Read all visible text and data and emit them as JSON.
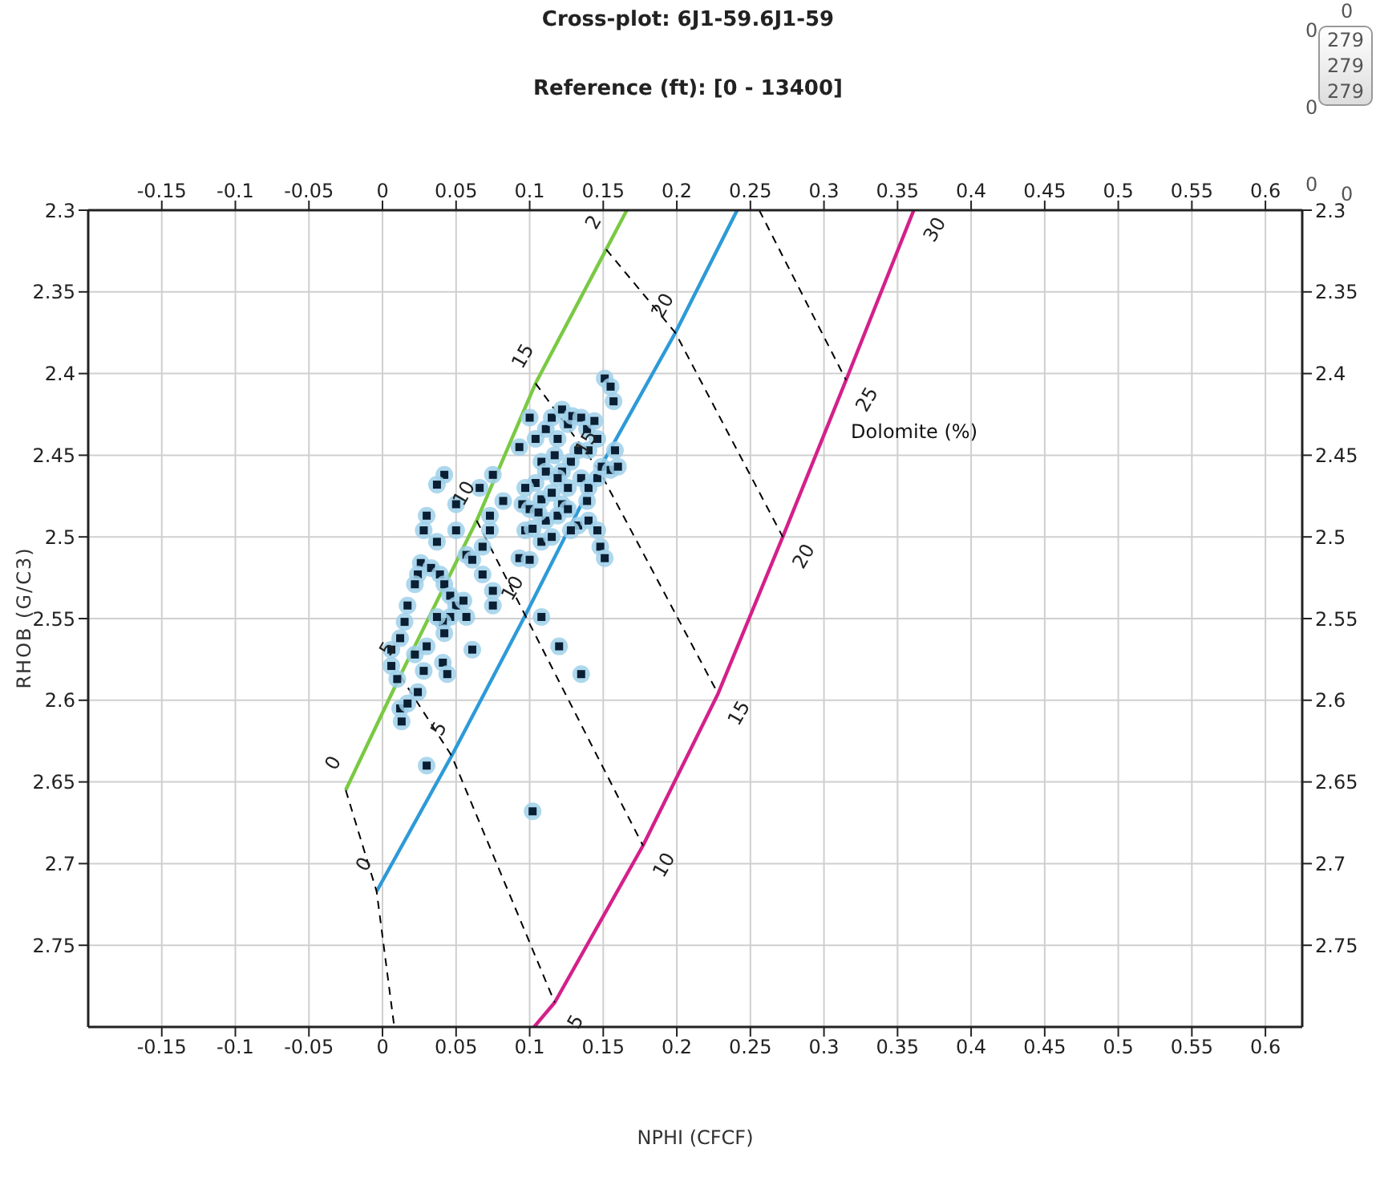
{
  "chart_data": {
    "type": "scatter",
    "title": "Cross-plot: 6J1-59.6J1-59",
    "subtitle": "Reference (ft): [0 - 13400]",
    "xlabel": "NPHI (CFCF)",
    "ylabel": "RHOB (G/C3)",
    "xlim": [
      -0.2,
      0.625
    ],
    "xticks": [
      -0.15,
      -0.1,
      -0.05,
      0,
      0.05,
      0.1,
      0.15,
      0.2,
      0.25,
      0.3,
      0.35,
      0.4,
      0.45,
      0.5,
      0.55,
      0.6
    ],
    "x2lim": [
      -0.2,
      0.625
    ],
    "x2ticks": [
      -0.15,
      -0.1,
      -0.05,
      0,
      0.05,
      0.1,
      0.15,
      0.2,
      0.25,
      0.3,
      0.35,
      0.4,
      0.45,
      0.5,
      0.55,
      0.6
    ],
    "ylim": [
      2.8,
      2.3
    ],
    "yticks": [
      2.3,
      2.35,
      2.4,
      2.45,
      2.5,
      2.55,
      2.6,
      2.65,
      2.7,
      2.75
    ],
    "y2lim": [
      2.8,
      2.3
    ],
    "y2ticks": [
      2.3,
      2.35,
      2.4,
      2.45,
      2.5,
      2.55,
      2.6,
      2.65,
      2.7,
      2.75
    ],
    "grid": true,
    "series": [
      {
        "marker": "square",
        "color": "#0a1f33",
        "x": [
          0.042,
          0.037,
          0.03,
          0.028,
          0.037,
          0.026,
          0.024,
          0.022,
          0.033,
          0.039,
          0.042,
          0.046,
          0.05,
          0.055,
          0.057,
          0.046,
          0.041,
          0.042,
          0.037,
          0.017,
          0.015,
          0.012,
          0.006,
          0.006,
          0.01,
          0.012,
          0.013,
          0.017,
          0.022,
          0.024,
          0.028,
          0.03,
          0.041,
          0.044,
          0.061,
          0.03,
          0.102,
          0.05,
          0.05,
          0.057,
          0.068,
          0.061,
          0.068,
          0.075,
          0.075,
          0.073,
          0.075,
          0.066,
          0.082,
          0.073,
          0.093,
          0.1,
          0.104,
          0.108,
          0.111,
          0.115,
          0.119,
          0.122,
          0.126,
          0.129,
          0.135,
          0.139,
          0.144,
          0.146,
          0.14,
          0.133,
          0.128,
          0.122,
          0.117,
          0.111,
          0.104,
          0.097,
          0.095,
          0.1,
          0.108,
          0.115,
          0.122,
          0.126,
          0.135,
          0.14,
          0.146,
          0.149,
          0.155,
          0.16,
          0.158,
          0.157,
          0.151,
          0.155,
          0.097,
          0.102,
          0.108,
          0.111,
          0.119,
          0.126,
          0.133,
          0.14,
          0.146,
          0.148,
          0.151,
          0.108,
          0.12,
          0.135,
          0.093,
          0.1,
          0.115,
          0.128,
          0.139,
          0.119,
          0.106
        ],
        "values": [
          2.462,
          2.468,
          2.487,
          2.496,
          2.503,
          2.516,
          2.523,
          2.529,
          2.519,
          2.523,
          2.529,
          2.536,
          2.542,
          2.539,
          2.549,
          2.549,
          2.552,
          2.559,
          2.549,
          2.542,
          2.552,
          2.562,
          2.569,
          2.579,
          2.587,
          2.605,
          2.613,
          2.602,
          2.572,
          2.595,
          2.582,
          2.567,
          2.577,
          2.584,
          2.569,
          2.64,
          2.668,
          2.48,
          2.496,
          2.511,
          2.506,
          2.514,
          2.523,
          2.533,
          2.542,
          2.496,
          2.462,
          2.47,
          2.478,
          2.487,
          2.445,
          2.427,
          2.44,
          2.454,
          2.434,
          2.427,
          2.44,
          2.422,
          2.431,
          2.426,
          2.427,
          2.434,
          2.429,
          2.44,
          2.447,
          2.447,
          2.454,
          2.46,
          2.45,
          2.46,
          2.467,
          2.47,
          2.48,
          2.483,
          2.477,
          2.473,
          2.48,
          2.47,
          2.464,
          2.47,
          2.464,
          2.457,
          2.459,
          2.457,
          2.447,
          2.417,
          2.403,
          2.408,
          2.496,
          2.495,
          2.503,
          2.49,
          2.487,
          2.483,
          2.493,
          2.49,
          2.496,
          2.506,
          2.513,
          2.549,
          2.567,
          2.584,
          2.513,
          2.514,
          2.5,
          2.496,
          2.478,
          2.464,
          2.485
        ]
      },
      {
        "type": "line",
        "color": "#7ac943",
        "x": [
          -0.025,
          0.012,
          0.064,
          0.104,
          0.152,
          0.166
        ],
        "values": [
          2.655,
          2.585,
          2.49,
          2.406,
          2.324,
          2.3
        ]
      },
      {
        "type": "line",
        "color": "#2e9ad8",
        "x": [
          -0.004,
          0.047,
          0.097,
          0.147,
          0.199,
          0.241
        ],
        "values": [
          2.717,
          2.634,
          2.548,
          2.459,
          2.375,
          2.3
        ]
      },
      {
        "type": "line",
        "name": "Dolomite (%)",
        "color": "#d4208a",
        "x": [
          0.103,
          0.117,
          0.177,
          0.228,
          0.272,
          0.315,
          0.361
        ],
        "values": [
          2.8,
          2.785,
          2.689,
          2.596,
          2.5,
          2.404,
          2.3
        ]
      },
      {
        "type": "line",
        "color": "#000000",
        "line_style": "dashed",
        "x": [
          -0.025,
          -0.004,
          0.008
        ],
        "values": [
          2.655,
          2.717,
          2.8
        ]
      },
      {
        "type": "line",
        "color": "#000000",
        "line_style": "dashed",
        "x": [
          0.012,
          0.047,
          0.117
        ],
        "values": [
          2.585,
          2.634,
          2.785
        ]
      },
      {
        "type": "line",
        "color": "#000000",
        "line_style": "dashed",
        "x": [
          0.064,
          0.097,
          0.177
        ],
        "values": [
          2.49,
          2.548,
          2.689
        ]
      },
      {
        "type": "line",
        "color": "#000000",
        "line_style": "dashed",
        "x": [
          0.104,
          0.147,
          0.228
        ],
        "values": [
          2.406,
          2.459,
          2.596
        ]
      },
      {
        "type": "line",
        "color": "#000000",
        "line_style": "dashed",
        "x": [
          0.152,
          0.199,
          0.272
        ],
        "values": [
          2.324,
          2.375,
          2.5
        ]
      },
      {
        "type": "line",
        "color": "#000000",
        "line_style": "dashed",
        "x": [
          0.256,
          0.315
        ],
        "values": [
          2.3,
          2.404
        ]
      }
    ],
    "annotations": [
      {
        "text": "0",
        "x": -0.025,
        "y": 2.655
      },
      {
        "text": "5",
        "x": 0.012,
        "y": 2.585
      },
      {
        "text": "10",
        "x": 0.064,
        "y": 2.49
      },
      {
        "text": "15",
        "x": 0.104,
        "y": 2.406
      },
      {
        "text": "2",
        "x": 0.152,
        "y": 2.324
      },
      {
        "text": "0",
        "x": -0.004,
        "y": 2.717
      },
      {
        "text": "5",
        "x": 0.047,
        "y": 2.634
      },
      {
        "text": "10",
        "x": 0.097,
        "y": 2.548
      },
      {
        "text": "15",
        "x": 0.147,
        "y": 2.459
      },
      {
        "text": "20",
        "x": 0.199,
        "y": 2.375
      },
      {
        "text": "5",
        "x": 0.117,
        "y": 2.785
      },
      {
        "text": "10",
        "x": 0.177,
        "y": 2.689
      },
      {
        "text": "15",
        "x": 0.228,
        "y": 2.596
      },
      {
        "text": "20",
        "x": 0.272,
        "y": 2.5
      },
      {
        "text": "25",
        "x": 0.315,
        "y": 2.404
      },
      {
        "text": "30",
        "x": 0.361,
        "y": 2.3
      },
      "0",
      "0",
      "0",
      "0",
      "279",
      "279",
      "279",
      "0"
    ]
  }
}
